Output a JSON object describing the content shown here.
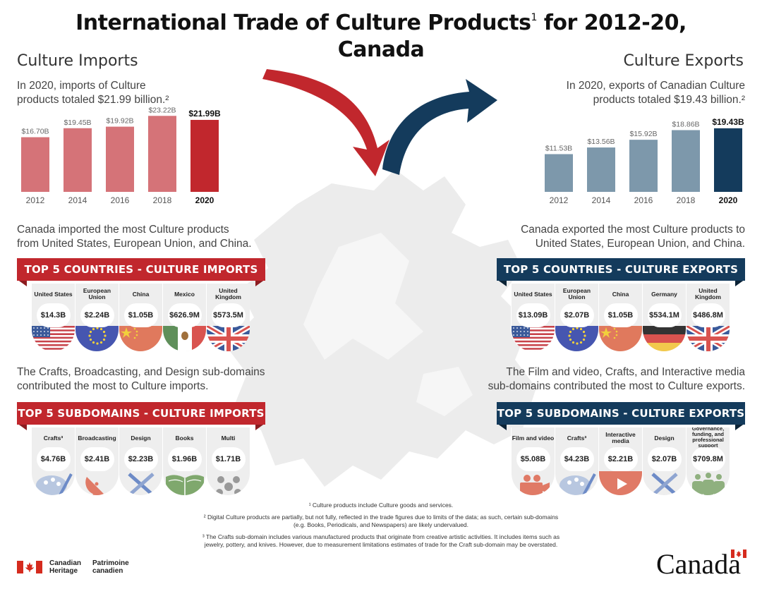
{
  "title": {
    "line1": "International Trade of Culture Products",
    "sup": "1",
    "line1_end": " for 2012-20,",
    "line2": "Canada"
  },
  "imports": {
    "heading": "Culture Imports",
    "lead1": "In 2020, imports of Culture",
    "lead2": "products totaled $21.99 billion.²",
    "top_countries_text1": "Canada imported the most Culture products",
    "top_countries_text2": "from United States, European Union, and China.",
    "countries_banner": "TOP 5 COUNTRIES - CULTURE IMPORTS",
    "countries": [
      {
        "name": "United States",
        "value": "$14.3B",
        "art": "us-flag-icon"
      },
      {
        "name": "European Union",
        "value": "$2.24B",
        "art": "eu-flag-icon"
      },
      {
        "name": "China",
        "value": "$1.05B",
        "art": "china-flag-icon"
      },
      {
        "name": "Mexico",
        "value": "$626.9M",
        "art": "mexico-flag-icon"
      },
      {
        "name": "United Kingdom",
        "value": "$573.5M",
        "art": "uk-flag-icon"
      }
    ],
    "sub_text1": "The Crafts, Broadcasting, and Design sub-domains",
    "sub_text2": "contributed the most to Culture imports.",
    "sub_banner": "TOP 5 SUBDOMAINS - CULTURE IMPORTS",
    "subdomains": [
      {
        "name": "Crafts³",
        "value": "$4.76B",
        "art": "palette-icon"
      },
      {
        "name": "Broadcasting",
        "value": "$2.41B",
        "art": "satellite-dish-icon"
      },
      {
        "name": "Design",
        "value": "$2.23B",
        "art": "design-tools-icon"
      },
      {
        "name": "Books",
        "value": "$1.96B",
        "art": "open-book-icon"
      },
      {
        "name": "Multi",
        "value": "$1.71B",
        "art": "multi-circles-icon"
      }
    ]
  },
  "exports": {
    "heading": "Culture Exports",
    "lead1": "In 2020, exports of Canadian Culture",
    "lead2": "products totaled $19.43 billion.²",
    "top_countries_text1": "Canada exported the most Culture products to",
    "top_countries_text2": "United States, European Union, and China.",
    "countries_banner": "TOP 5 COUNTRIES - CULTURE EXPORTS",
    "countries": [
      {
        "name": "United States",
        "value": "$13.09B",
        "art": "us-flag-icon"
      },
      {
        "name": "European Union",
        "value": "$2.07B",
        "art": "eu-flag-icon"
      },
      {
        "name": "China",
        "value": "$1.05B",
        "art": "china-flag-icon"
      },
      {
        "name": "Germany",
        "value": "$534.1M",
        "art": "germany-flag-icon"
      },
      {
        "name": "United Kingdom",
        "value": "$486.8M",
        "art": "uk-flag-icon"
      }
    ],
    "sub_text1": "The Film and video, Crafts, and Interactive media",
    "sub_text2": "sub-domains contributed the most to Culture exports.",
    "sub_banner": "TOP 5 SUBDOMAINS - CULTURE EXPORTS",
    "subdomains": [
      {
        "name": "Film and video",
        "value": "$5.08B",
        "art": "film-camera-icon"
      },
      {
        "name": "Crafts³",
        "value": "$4.23B",
        "art": "palette-icon"
      },
      {
        "name": "Interactive media",
        "value": "$2.21B",
        "art": "play-button-icon"
      },
      {
        "name": "Design",
        "value": "$2.07B",
        "art": "design-tools-icon"
      },
      {
        "name": "Governance, funding, and professional support",
        "value": "$709.8M",
        "art": "people-group-icon"
      }
    ]
  },
  "chart_data": [
    {
      "type": "bar",
      "categories": [
        "2012",
        "2014",
        "2016",
        "2018",
        "2020"
      ],
      "values": [
        16.7,
        19.45,
        19.92,
        23.22,
        21.99
      ],
      "data_labels": [
        "$16.70B",
        "$19.45B",
        "$19.92B",
        "$23.22B",
        "$21.99B"
      ],
      "ylim": [
        0,
        25
      ],
      "colors": [
        "#d57378",
        "#d57378",
        "#d57378",
        "#d57378",
        "#c1272d"
      ],
      "title": "",
      "xlabel": "",
      "ylabel": ""
    },
    {
      "type": "bar",
      "categories": [
        "2012",
        "2014",
        "2016",
        "2018",
        "2020"
      ],
      "values": [
        11.53,
        13.56,
        15.92,
        18.86,
        19.43
      ],
      "data_labels": [
        "$11.53B",
        "$13.56B",
        "$15.92B",
        "$18.86B",
        "$19.43B"
      ],
      "ylim": [
        0,
        25
      ],
      "colors": [
        "#7d98ab",
        "#7d98ab",
        "#7d98ab",
        "#7d98ab",
        "#143b5c"
      ],
      "title": "",
      "xlabel": "",
      "ylabel": ""
    }
  ],
  "footnotes": {
    "f1": "¹ Culture products include Culture goods and services.",
    "f2a": "² Digital Culture products are partially, but not fully, reflected in the trade figures due to limits of the data; as such, certain sub-domains",
    "f2b": "(e.g. Books, Periodicals, and Newspapers) are likely undervalued.",
    "f3a": "³ The Crafts sub-domain includes various manufactured products that originate from creative artistic activities. It includes items such as",
    "f3b": "jewelry, pottery, and knives. However, due to measurement limitations estimates of trade for the Craft sub-domain may be overstated."
  },
  "logo": {
    "en1": "Canadian",
    "en2": "Heritage",
    "fr1": "Patrimoine",
    "fr2": "canadien"
  },
  "wordmark": "Canada",
  "colors": {
    "import_red": "#c1272d",
    "import_light": "#d57378",
    "export_blue": "#143b5c",
    "export_light": "#7d98ab"
  }
}
